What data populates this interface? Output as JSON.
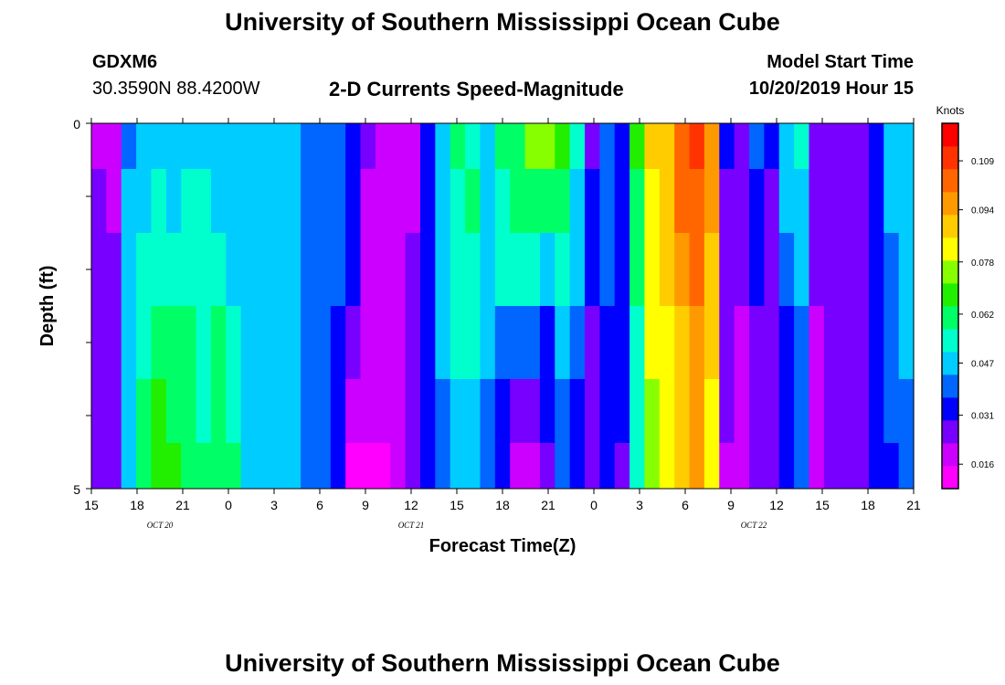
{
  "header": {
    "title_top": "University of Southern Mississippi Ocean Cube",
    "station_id": "GDXM6",
    "station_coords": "30.3590N 88.4200W",
    "chart_title": "2-D Currents Speed-Magnitude",
    "model_start_label": "Model Start Time",
    "model_start_value": "10/20/2019 Hour 15",
    "title_bottom": "University of Southern Mississippi Ocean Cube"
  },
  "chart_data": {
    "type": "heatmap",
    "title": "2-D Currents Speed-Magnitude",
    "xlabel": "Forecast Time(Z)",
    "ylabel": "Depth (ft)",
    "ylim": [
      0,
      5
    ],
    "y_tick_labels": [
      "0",
      "5"
    ],
    "x_tick_labels": [
      "15",
      "18",
      "21",
      "0",
      "3",
      "6",
      "9",
      "12",
      "15",
      "18",
      "21",
      "0",
      "3",
      "6",
      "9",
      "12",
      "15",
      "18",
      "21"
    ],
    "date_labels": [
      {
        "text": "OCT 20",
        "at_tick": 1.5
      },
      {
        "text": "OCT 21",
        "at_tick": 7
      },
      {
        "text": "OCT 22",
        "at_tick": 14.5
      }
    ],
    "colorbar": {
      "unit": "Knots",
      "min": 0.0085,
      "max": 0.1205,
      "tick_values": [
        0.016,
        0.031,
        0.047,
        0.062,
        0.078,
        0.094,
        0.109
      ],
      "tick_labels": [
        "0.016",
        "0.031",
        "0.047",
        "0.062",
        "0.078",
        "0.094",
        "0.109"
      ]
    },
    "rows_depth_ft": [
      0.25,
      1.0,
      2.0,
      3.0,
      4.0,
      4.75
    ],
    "x_hours": [
      0,
      1,
      2,
      3,
      4,
      5,
      6,
      7,
      8,
      9,
      10,
      11,
      12,
      13,
      14,
      15,
      16,
      17,
      18,
      19,
      20,
      21,
      22,
      23,
      24,
      25,
      26,
      27,
      28,
      29,
      30,
      31,
      32,
      33,
      34,
      35,
      36,
      37,
      38,
      39,
      40,
      41,
      42,
      43,
      44,
      45,
      46,
      47,
      48,
      49,
      50,
      51,
      52,
      53,
      54
    ],
    "values": [
      [
        0.022,
        0.02,
        0.04,
        0.046,
        0.048,
        0.048,
        0.05,
        0.048,
        0.046,
        0.046,
        0.044,
        0.047,
        0.05,
        0.046,
        0.04,
        0.04,
        0.04,
        0.034,
        0.024,
        0.021,
        0.02,
        0.022,
        0.036,
        0.048,
        0.06,
        0.056,
        0.048,
        0.06,
        0.064,
        0.076,
        0.072,
        0.07,
        0.052,
        0.028,
        0.04,
        0.03,
        0.068,
        0.086,
        0.09,
        0.105,
        0.11,
        0.098,
        0.03,
        0.024,
        0.042,
        0.03,
        0.044,
        0.052,
        0.024,
        0.026,
        0.026,
        0.026,
        0.032,
        0.044,
        0.05
      ],
      [
        0.024,
        0.022,
        0.044,
        0.05,
        0.052,
        0.05,
        0.054,
        0.052,
        0.05,
        0.048,
        0.044,
        0.046,
        0.05,
        0.046,
        0.04,
        0.04,
        0.04,
        0.034,
        0.022,
        0.02,
        0.02,
        0.022,
        0.034,
        0.046,
        0.056,
        0.058,
        0.05,
        0.056,
        0.06,
        0.06,
        0.058,
        0.058,
        0.05,
        0.03,
        0.042,
        0.034,
        0.064,
        0.084,
        0.088,
        0.1,
        0.106,
        0.094,
        0.028,
        0.024,
        0.036,
        0.028,
        0.044,
        0.048,
        0.024,
        0.026,
        0.026,
        0.026,
        0.03,
        0.044,
        0.048
      ],
      [
        0.026,
        0.024,
        0.046,
        0.054,
        0.056,
        0.052,
        0.056,
        0.054,
        0.052,
        0.05,
        0.044,
        0.046,
        0.048,
        0.046,
        0.04,
        0.04,
        0.038,
        0.03,
        0.022,
        0.02,
        0.02,
        0.024,
        0.034,
        0.046,
        0.054,
        0.056,
        0.05,
        0.054,
        0.056,
        0.054,
        0.05,
        0.052,
        0.046,
        0.03,
        0.04,
        0.034,
        0.06,
        0.08,
        0.086,
        0.096,
        0.102,
        0.09,
        0.026,
        0.024,
        0.032,
        0.028,
        0.04,
        0.046,
        0.024,
        0.026,
        0.026,
        0.026,
        0.03,
        0.042,
        0.046
      ],
      [
        0.026,
        0.024,
        0.046,
        0.056,
        0.06,
        0.062,
        0.058,
        0.056,
        0.058,
        0.054,
        0.044,
        0.046,
        0.046,
        0.046,
        0.04,
        0.04,
        0.036,
        0.028,
        0.02,
        0.02,
        0.02,
        0.024,
        0.03,
        0.044,
        0.052,
        0.052,
        0.044,
        0.04,
        0.038,
        0.038,
        0.036,
        0.044,
        0.04,
        0.028,
        0.036,
        0.03,
        0.056,
        0.08,
        0.084,
        0.092,
        0.098,
        0.086,
        0.024,
        0.022,
        0.028,
        0.026,
        0.036,
        0.042,
        0.022,
        0.024,
        0.024,
        0.024,
        0.03,
        0.04,
        0.044
      ],
      [
        0.026,
        0.024,
        0.048,
        0.058,
        0.066,
        0.064,
        0.058,
        0.056,
        0.06,
        0.056,
        0.044,
        0.046,
        0.046,
        0.044,
        0.04,
        0.04,
        0.032,
        0.018,
        0.016,
        0.016,
        0.018,
        0.024,
        0.03,
        0.04,
        0.046,
        0.046,
        0.04,
        0.034,
        0.026,
        0.024,
        0.03,
        0.04,
        0.036,
        0.026,
        0.034,
        0.03,
        0.054,
        0.078,
        0.084,
        0.09,
        0.096,
        0.084,
        0.024,
        0.022,
        0.026,
        0.026,
        0.034,
        0.04,
        0.022,
        0.024,
        0.024,
        0.024,
        0.03,
        0.038,
        0.042
      ],
      [
        0.026,
        0.024,
        0.048,
        0.06,
        0.068,
        0.066,
        0.06,
        0.058,
        0.062,
        0.058,
        0.046,
        0.046,
        0.046,
        0.044,
        0.04,
        0.04,
        0.03,
        0.014,
        0.014,
        0.014,
        0.016,
        0.026,
        0.03,
        0.038,
        0.044,
        0.044,
        0.04,
        0.032,
        0.022,
        0.02,
        0.028,
        0.04,
        0.036,
        0.024,
        0.032,
        0.028,
        0.052,
        0.076,
        0.082,
        0.088,
        0.094,
        0.082,
        0.022,
        0.02,
        0.024,
        0.024,
        0.032,
        0.038,
        0.022,
        0.024,
        0.024,
        0.024,
        0.03,
        0.036,
        0.04
      ]
    ]
  },
  "colors": {
    "palette": [
      "#ff00ff",
      "#cc00ff",
      "#7700ff",
      "#0000ff",
      "#0066ff",
      "#00ccff",
      "#00ffcc",
      "#00ff66",
      "#22ee00",
      "#88ff00",
      "#ffff00",
      "#ffcc00",
      "#ff9900",
      "#ff6600",
      "#ff3300",
      "#ff0000"
    ]
  }
}
